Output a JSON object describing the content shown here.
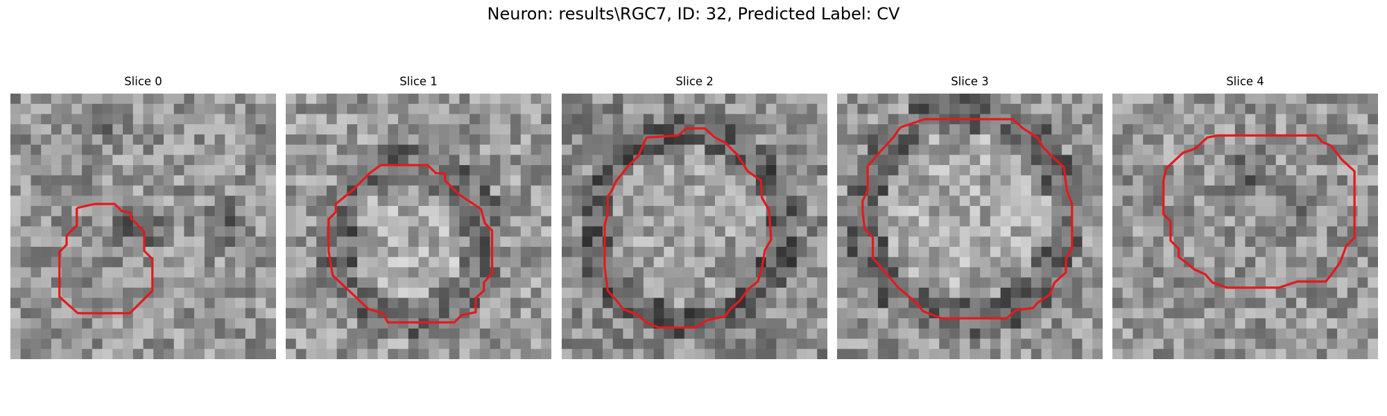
{
  "figure": {
    "title": "Neuron: results\\RGC7, ID: 32, Predicted Label: CV"
  },
  "contour_color": "#e31a1c",
  "panels": [
    {
      "title": "Slice 0"
    },
    {
      "title": "Slice 1"
    },
    {
      "title": "Slice 2"
    },
    {
      "title": "Slice 3"
    },
    {
      "title": "Slice 4"
    }
  ]
}
